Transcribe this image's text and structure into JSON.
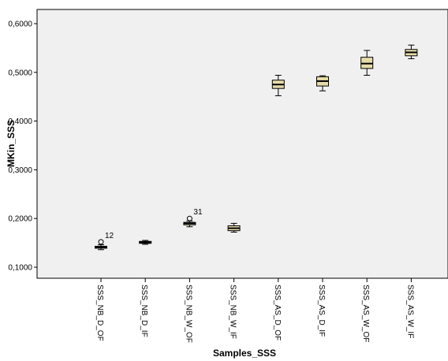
{
  "chart_data": {
    "type": "boxplot",
    "title": "",
    "xlabel": "Samples_SSS",
    "ylabel": "MKin_SSS",
    "ylim": [
      0.085,
      0.62
    ],
    "yticks": [
      0.1,
      0.2,
      0.3,
      0.4,
      0.5,
      0.6
    ],
    "ytick_labels": [
      "0,1000",
      "0,2000",
      "0,3000",
      "0,4000",
      "0,5000",
      "0,6000"
    ],
    "grid": false,
    "legend": "none",
    "colors": {
      "plot_background": "#f0f0f0",
      "box_fill": "#e6dcaa",
      "stroke": "#000000"
    },
    "categories": [
      "SSS_NB_D_OF",
      "SSS_NB_D_IF",
      "SSS_NB_W_OF",
      "SSS_NB_W_IF",
      "SSS_AS_D_OF",
      "SSS_AS_D_IF",
      "SSS_AS_W_OF",
      "SSS_AS_W_IF"
    ],
    "boxes": [
      {
        "min": 0.136,
        "q1": 0.139,
        "median": 0.141,
        "q3": 0.143,
        "max": 0.146
      },
      {
        "min": 0.147,
        "q1": 0.149,
        "median": 0.151,
        "q3": 0.153,
        "max": 0.155
      },
      {
        "min": 0.183,
        "q1": 0.187,
        "median": 0.19,
        "q3": 0.192,
        "max": 0.195
      },
      {
        "min": 0.172,
        "q1": 0.175,
        "median": 0.18,
        "q3": 0.185,
        "max": 0.19
      },
      {
        "min": 0.452,
        "q1": 0.467,
        "median": 0.475,
        "q3": 0.484,
        "max": 0.494
      },
      {
        "min": 0.462,
        "q1": 0.472,
        "median": 0.482,
        "q3": 0.491,
        "max": 0.493
      },
      {
        "min": 0.494,
        "q1": 0.508,
        "median": 0.518,
        "q3": 0.531,
        "max": 0.545
      },
      {
        "min": 0.528,
        "q1": 0.534,
        "median": 0.541,
        "q3": 0.547,
        "max": 0.556
      }
    ],
    "outliers": [
      {
        "category": "SSS_NB_D_OF",
        "value": 0.152,
        "label": "12"
      },
      {
        "category": "SSS_NB_W_OF",
        "value": 0.2,
        "label": "31"
      }
    ]
  }
}
